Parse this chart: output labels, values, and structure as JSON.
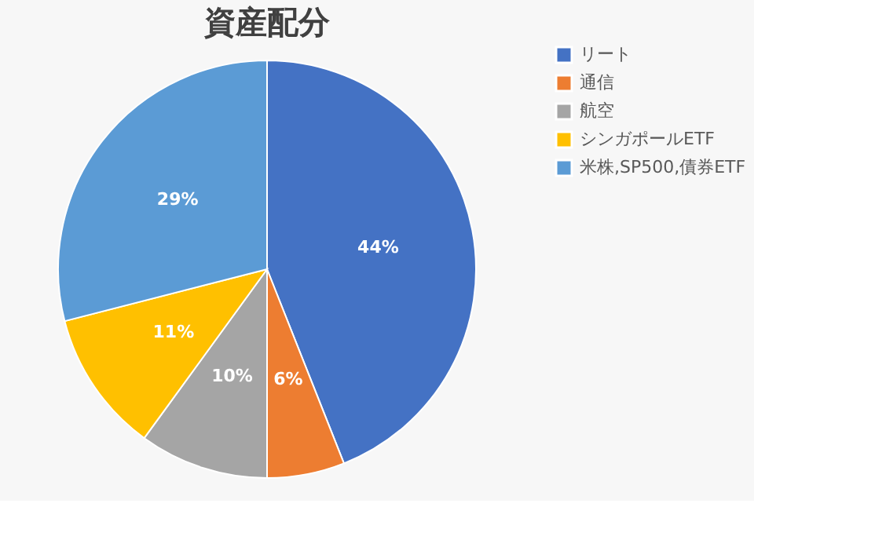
{
  "chart_data": {
    "type": "pie",
    "title": "資産配分",
    "categories": [
      "リート",
      "通信",
      "航空",
      "シンガポールETF",
      "米株,SP500,債券ETF"
    ],
    "values": [
      44,
      6,
      10,
      11,
      29
    ],
    "colors": [
      "#4472c4",
      "#ed7d31",
      "#a5a5a5",
      "#ffc000",
      "#5b9bd5"
    ],
    "value_labels": [
      "44%",
      "6%",
      "10%",
      "11%",
      "29%"
    ],
    "legend": "right"
  }
}
